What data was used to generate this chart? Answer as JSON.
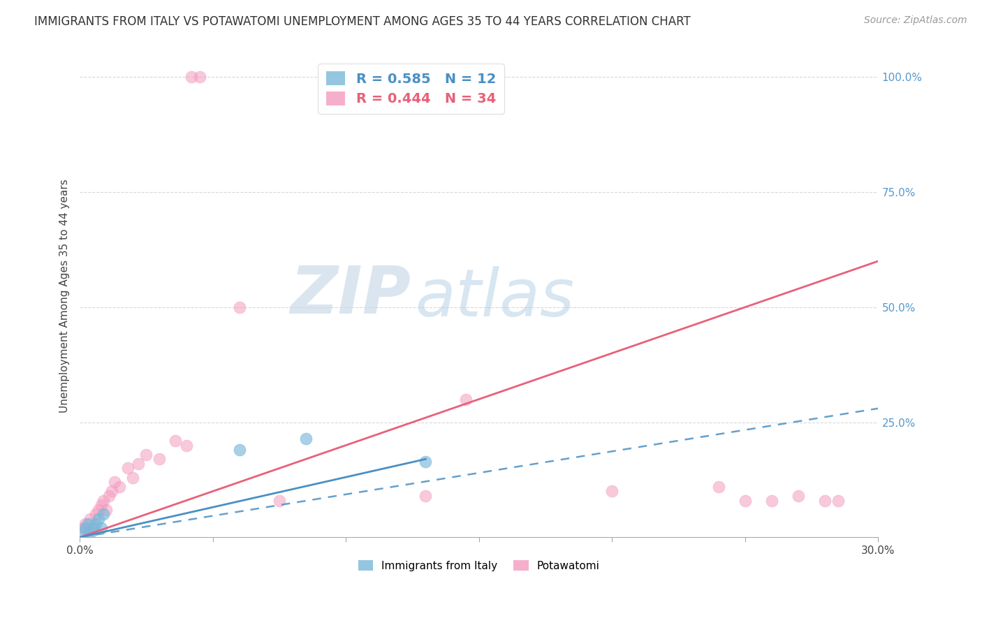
{
  "title": "IMMIGRANTS FROM ITALY VS POTAWATOMI UNEMPLOYMENT AMONG AGES 35 TO 44 YEARS CORRELATION CHART",
  "source": "Source: ZipAtlas.com",
  "ylabel": "Unemployment Among Ages 35 to 44 years",
  "xlim": [
    0.0,
    0.3
  ],
  "ylim": [
    0.0,
    1.05
  ],
  "x_ticks": [
    0.0,
    0.05,
    0.1,
    0.15,
    0.2,
    0.25,
    0.3
  ],
  "x_tick_labels": [
    "0.0%",
    "",
    "",
    "",
    "",
    "",
    "30.0%"
  ],
  "y_ticks_right": [
    0.0,
    0.25,
    0.5,
    0.75,
    1.0
  ],
  "y_tick_labels_right": [
    "",
    "25.0%",
    "50.0%",
    "75.0%",
    "100.0%"
  ],
  "italy_color": "#7ab8d9",
  "potawatomi_color": "#f49bbf",
  "italy_line_color": "#4a90c4",
  "potawatomi_line_color": "#e8607a",
  "italy_R": 0.585,
  "italy_N": 12,
  "potawatomi_R": 0.444,
  "potawatomi_N": 34,
  "italy_scatter_x": [
    0.001,
    0.002,
    0.003,
    0.004,
    0.005,
    0.006,
    0.007,
    0.008,
    0.009,
    0.06,
    0.085,
    0.13
  ],
  "italy_scatter_y": [
    0.01,
    0.02,
    0.03,
    0.01,
    0.02,
    0.03,
    0.04,
    0.02,
    0.05,
    0.19,
    0.215,
    0.165
  ],
  "potawatomi_scatter_x": [
    0.001,
    0.002,
    0.003,
    0.004,
    0.005,
    0.006,
    0.007,
    0.008,
    0.009,
    0.01,
    0.011,
    0.012,
    0.013,
    0.015,
    0.018,
    0.02,
    0.022,
    0.025,
    0.03,
    0.036,
    0.04,
    0.042,
    0.045,
    0.06,
    0.075,
    0.13,
    0.145,
    0.2,
    0.24,
    0.25,
    0.26,
    0.27,
    0.28,
    0.285
  ],
  "potawatomi_scatter_y": [
    0.02,
    0.03,
    0.01,
    0.04,
    0.02,
    0.05,
    0.06,
    0.07,
    0.08,
    0.06,
    0.09,
    0.1,
    0.12,
    0.11,
    0.15,
    0.13,
    0.16,
    0.18,
    0.17,
    0.21,
    0.2,
    1.0,
    1.0,
    0.5,
    0.08,
    0.09,
    0.3,
    0.1,
    0.11,
    0.08,
    0.08,
    0.09,
    0.08,
    0.08
  ],
  "background_color": "#ffffff",
  "grid_color": "#d8d8d8",
  "watermark_zip": "ZIP",
  "watermark_atlas": "atlas",
  "italy_solid_line": [
    [
      0.0,
      0.0
    ],
    [
      0.13,
      0.17
    ]
  ],
  "italy_dashed_line": [
    [
      0.0,
      0.0
    ],
    [
      0.3,
      0.28
    ]
  ],
  "potawatomi_line": [
    [
      0.0,
      0.0
    ],
    [
      0.3,
      0.6
    ]
  ]
}
